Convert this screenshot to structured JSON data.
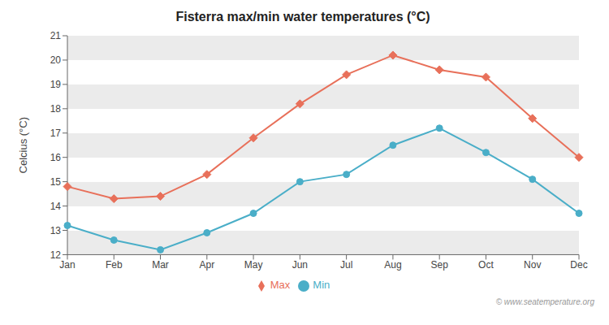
{
  "chart_data": {
    "type": "line",
    "title": "Fisterra max/min water temperatures (°C)",
    "ylabel": "Celcius (°C)",
    "categories": [
      "Jan",
      "Feb",
      "Mar",
      "Apr",
      "May",
      "Jun",
      "Jul",
      "Aug",
      "Sep",
      "Oct",
      "Nov",
      "Dec"
    ],
    "series": [
      {
        "name": "Max",
        "color": "#e8705a",
        "marker": "diamond",
        "values": [
          14.8,
          14.3,
          14.4,
          15.3,
          16.8,
          18.2,
          19.4,
          20.2,
          19.6,
          19.3,
          17.6,
          16.0
        ]
      },
      {
        "name": "Min",
        "color": "#4aaec8",
        "marker": "circle",
        "values": [
          13.2,
          12.6,
          12.2,
          12.9,
          13.7,
          15.0,
          15.3,
          16.5,
          17.2,
          16.2,
          15.1,
          13.7
        ]
      }
    ],
    "ylim": [
      12.0,
      21.0
    ],
    "yticks": [
      12,
      13,
      14,
      15,
      16,
      17,
      18,
      19,
      20,
      21
    ],
    "grid": true,
    "legend": "bottom",
    "annotations": [
      "© www.seatemperature.org"
    ]
  }
}
